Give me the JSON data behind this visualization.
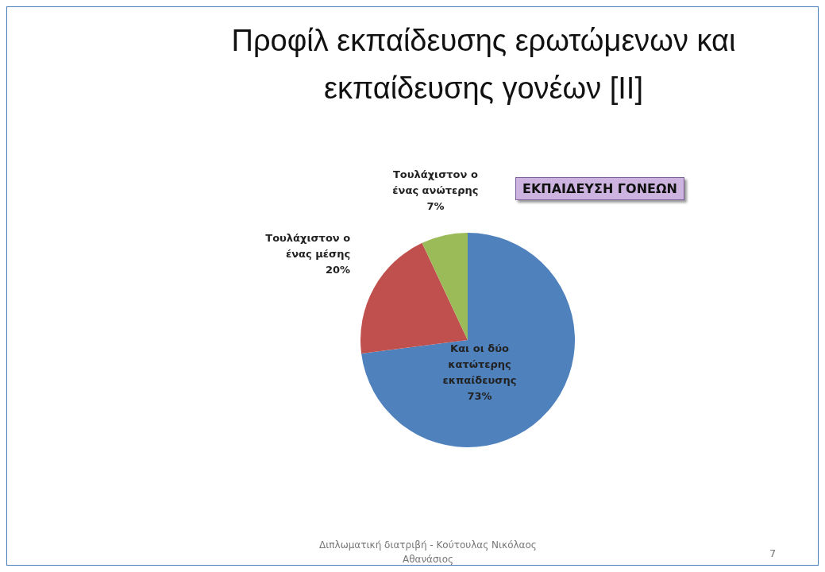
{
  "chart_data": {
    "type": "pie",
    "title": "Προφίλ εκπαίδευσης ερωτώμενων και εκπαίδευσης γονέων [II]",
    "subtitle": "ΕΚΠΑΙΔΕΥΣΗ ΓΟΝΕΩΝ",
    "categories": [
      "Και οι δύο κατώτερης εκπαίδευσης",
      "Τουλάχιστον ο ένας μέσης",
      "Τουλάχιστον ο ένας ανώτερης"
    ],
    "values": [
      73,
      20,
      7
    ],
    "value_labels": [
      "73%",
      "20%",
      "7%"
    ],
    "colors": [
      "#4f81bd",
      "#c0504d",
      "#9bbb59"
    ],
    "annotations": [
      "Διπλωματική διατριβή - Κούτουλας Νικόλαος Αθανάσιος",
      "7"
    ]
  }
}
